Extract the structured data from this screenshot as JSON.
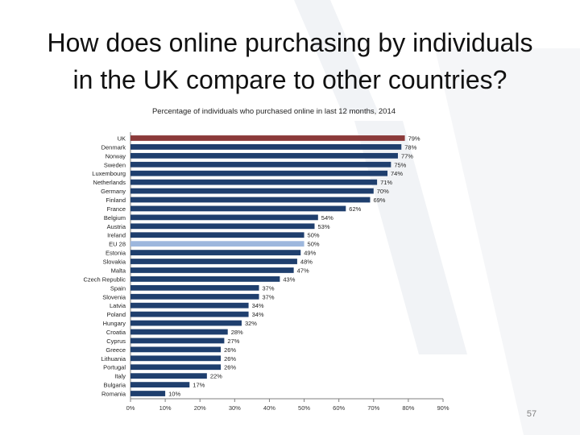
{
  "slide": {
    "title_line1": "How does online purchasing by individuals",
    "title_line2": "in the UK compare to other countries?",
    "page_number": "57"
  },
  "chart_data": {
    "type": "bar",
    "orientation": "horizontal",
    "title": "Percentage of individuals who purchased online in last 12 months, 2014",
    "xlabel": "",
    "ylabel": "",
    "xlim": [
      0,
      90
    ],
    "x_tick_labels": [
      "0%",
      "10%",
      "20%",
      "30%",
      "40%",
      "50%",
      "60%",
      "70%",
      "80%",
      "90%"
    ],
    "grid": false,
    "legend": "none",
    "categories": [
      "UK",
      "Denmark",
      "Norway",
      "Sweden",
      "Luxembourg",
      "Netherlands",
      "Germany",
      "Finland",
      "France",
      "Belgium",
      "Austria",
      "Ireland",
      "EU 28",
      "Estonia",
      "Slovakia",
      "Malta",
      "Czech Republic",
      "Spain",
      "Slovenia",
      "Latvia",
      "Poland",
      "Hungary",
      "Croatia",
      "Cyprus",
      "Greece",
      "Lithuania",
      "Portugal",
      "Italy",
      "Bulgaria",
      "Romania"
    ],
    "values": [
      79,
      78,
      77,
      75,
      74,
      71,
      70,
      69,
      62,
      54,
      53,
      50,
      50,
      49,
      48,
      47,
      43,
      37,
      37,
      34,
      34,
      32,
      28,
      27,
      26,
      26,
      26,
      22,
      17,
      10
    ],
    "value_labels": [
      "79%",
      "78%",
      "77%",
      "75%",
      "74%",
      "71%",
      "70%",
      "69%",
      "62%",
      "54%",
      "53%",
      "50%",
      "50%",
      "49%",
      "48%",
      "47%",
      "43%",
      "37%",
      "37%",
      "34%",
      "34%",
      "32%",
      "28%",
      "27%",
      "26%",
      "26%",
      "26%",
      "22%",
      "17%",
      "10%"
    ],
    "colors": {
      "default": "#1f3f6e",
      "highlight_uk": "#8b3a3a",
      "highlight_eu": "#9db7dd"
    },
    "highlighted": {
      "UK": "highlight_uk",
      "EU 28": "highlight_eu"
    }
  }
}
